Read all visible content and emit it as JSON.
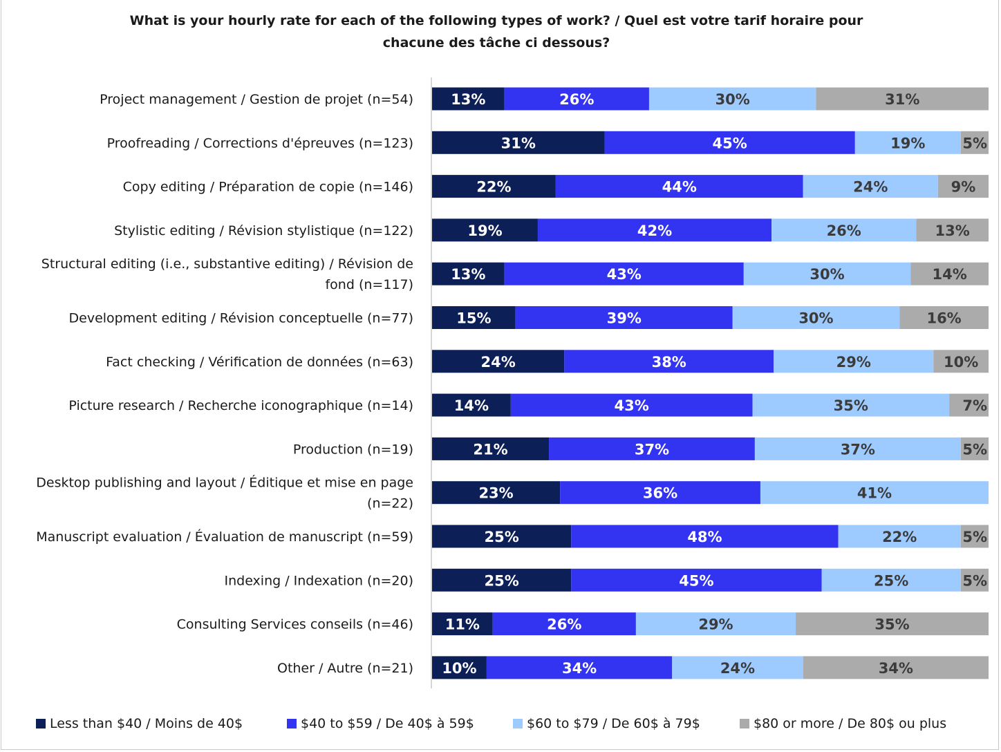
{
  "chart_data": {
    "type": "bar",
    "orientation": "horizontal",
    "stacked": true,
    "title": "What is your hourly rate for each of the following types of work? / Quel est votre tarif horaire  pour chacune des tâche ci dessous?",
    "title_lines": [
      "What is your hourly rate for each of the following types of work? / Quel est votre tarif horaire  pour",
      "chacune des tâche ci dessous?"
    ],
    "categories": [
      [
        "Project management / Gestion de projet (n=54)"
      ],
      [
        "Proofreading / Corrections d'épreuves (n=123)"
      ],
      [
        "Copy editing / Préparation de copie (n=146)"
      ],
      [
        "Stylistic editing / Révision stylistique (n=122)"
      ],
      [
        "Structural editing (i.e., substantive editing) / Révision de",
        "fond (n=117)"
      ],
      [
        "Development editing / Révision conceptuelle (n=77)"
      ],
      [
        "Fact checking / Vérification de données (n=63)"
      ],
      [
        "Picture research / Recherche iconographique (n=14)"
      ],
      [
        "Production (n=19)"
      ],
      [
        "Desktop publishing and layout / Éditique et mise en page",
        "(n=22)"
      ],
      [
        "Manuscript evaluation / Évaluation de manuscript (n=59)"
      ],
      [
        "Indexing  / Indexation (n=20)"
      ],
      [
        "Consulting Services conseils (n=46)"
      ],
      [
        "Other / Autre (n=21)"
      ]
    ],
    "series": [
      {
        "name": "Less than $40 / Moins de 40$",
        "color": "#0d1f57",
        "label_color": "#ffffff",
        "values": [
          13,
          31,
          22,
          19,
          13,
          15,
          24,
          14,
          21,
          23,
          25,
          25,
          11,
          10
        ]
      },
      {
        "name": "$40 to $59 / De 40$ à 59$",
        "color": "#3333f2",
        "label_color": "#ffffff",
        "values": [
          26,
          45,
          44,
          42,
          43,
          39,
          38,
          43,
          37,
          36,
          48,
          45,
          26,
          34
        ]
      },
      {
        "name": "$60 to $79 / De 60$ à 79$",
        "color": "#9ecbff",
        "label_color": "#3b3b3b",
        "values": [
          30,
          19,
          24,
          26,
          30,
          30,
          29,
          35,
          37,
          41,
          22,
          25,
          29,
          24
        ]
      },
      {
        "name": "$80 or more / De 80$ ou plus",
        "color": "#ababab",
        "label_color": "#3b3b3b",
        "values": [
          31,
          5,
          9,
          13,
          14,
          16,
          10,
          7,
          5,
          null,
          5,
          5,
          35,
          34
        ]
      }
    ],
    "value_suffix": "%",
    "legend_position": "bottom",
    "grid": false
  }
}
